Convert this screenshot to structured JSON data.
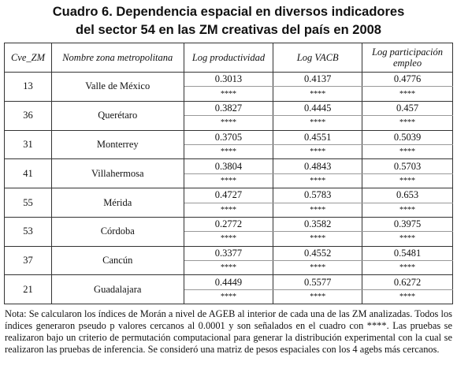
{
  "header": {
    "title_lines": [
      "Cuadro 6. Dependencia espacial en diversos indicadores",
      "del sector 54 en las ZM creativas del país en 2008"
    ]
  },
  "table": {
    "columns": [
      "Cve_ZM",
      "Nombre zona metropolitana",
      "Log productividad",
      "Log VACB",
      "Log participación empleo"
    ],
    "rows": [
      {
        "cve": 13,
        "name": "Valle de México",
        "values": [
          0.3013,
          0.4137,
          0.4776
        ],
        "signif": [
          "****",
          "****",
          "****"
        ]
      },
      {
        "cve": 36,
        "name": "Querétaro",
        "values": [
          0.3827,
          0.4445,
          0.457
        ],
        "signif": [
          "****",
          "****",
          "****"
        ]
      },
      {
        "cve": 31,
        "name": "Monterrey",
        "values": [
          0.3705,
          0.4551,
          0.5039
        ],
        "signif": [
          "****",
          "****",
          "****"
        ]
      },
      {
        "cve": 41,
        "name": "Villahermosa",
        "values": [
          0.3804,
          0.4843,
          0.5703
        ],
        "signif": [
          "****",
          "****",
          "****"
        ]
      },
      {
        "cve": 55,
        "name": "Mérida",
        "values": [
          0.4727,
          0.5783,
          0.653
        ],
        "signif": [
          "****",
          "****",
          "****"
        ]
      },
      {
        "cve": 53,
        "name": "Córdoba",
        "values": [
          0.2772,
          0.3582,
          0.3975
        ],
        "signif": [
          "****",
          "****",
          "****"
        ]
      },
      {
        "cve": 37,
        "name": "Cancún",
        "values": [
          0.3377,
          0.4552,
          0.5481
        ],
        "signif": [
          "****",
          "****",
          "****"
        ]
      },
      {
        "cve": 21,
        "name": "Guadalajara",
        "values": [
          0.4449,
          0.5577,
          0.6272
        ],
        "signif": [
          "****",
          "****",
          "****"
        ]
      }
    ]
  },
  "note": "Nota: Se calcularon los índices de Morán a nivel de AGEB al interior de cada una de las ZM analizadas. Todos los índices generaron pseudo p valores cercanos al 0.0001 y son señalados en el cuadro con ****. Las pruebas se realizaron bajo un criterio de permutación computacional para generar la distribución experimental con la cual se realizaron las pruebas de inferencia. Se consideró una matriz de pesos espaciales con los 4 agebs más cercanos."
}
